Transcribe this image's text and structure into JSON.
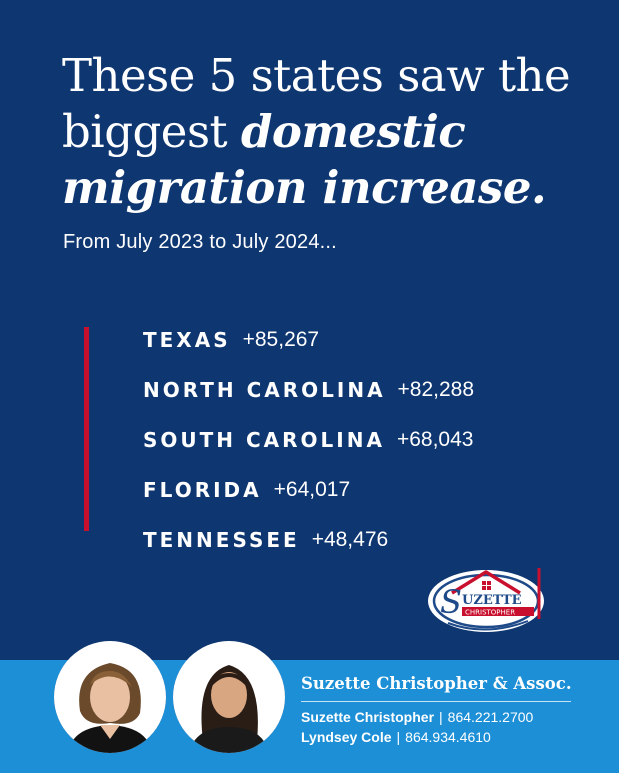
{
  "headline": {
    "line1": "These 5 states saw the",
    "line2_prefix": "biggest ",
    "line2_emph": "domestic",
    "line3_emph": "migration increase."
  },
  "subhead": "From July 2023 to July 2024...",
  "states": [
    {
      "name": "TEXAS",
      "value": "+85,267"
    },
    {
      "name": "NORTH CAROLINA",
      "value": "+82,288"
    },
    {
      "name": "SOUTH CAROLINA",
      "value": "+68,043"
    },
    {
      "name": "FLORIDA",
      "value": "+64,017"
    },
    {
      "name": "TENNESSEE",
      "value": "+48,476"
    }
  ],
  "logo": {
    "word": "UZETTE",
    "initial": "S",
    "sub": "CHRISTOPHER"
  },
  "footer": {
    "brand": "Suzette Christopher & Assoc.",
    "contacts": [
      {
        "name": "Suzette Christopher",
        "sep": "|",
        "phone": "864.221.2700"
      },
      {
        "name": "Lyndsey Cole",
        "sep": "|",
        "phone": "864.934.4610"
      }
    ]
  },
  "colors": {
    "background": "#0e3670",
    "accent_red": "#c8102e",
    "footer_blue": "#1d8fd6",
    "text": "#ffffff"
  }
}
